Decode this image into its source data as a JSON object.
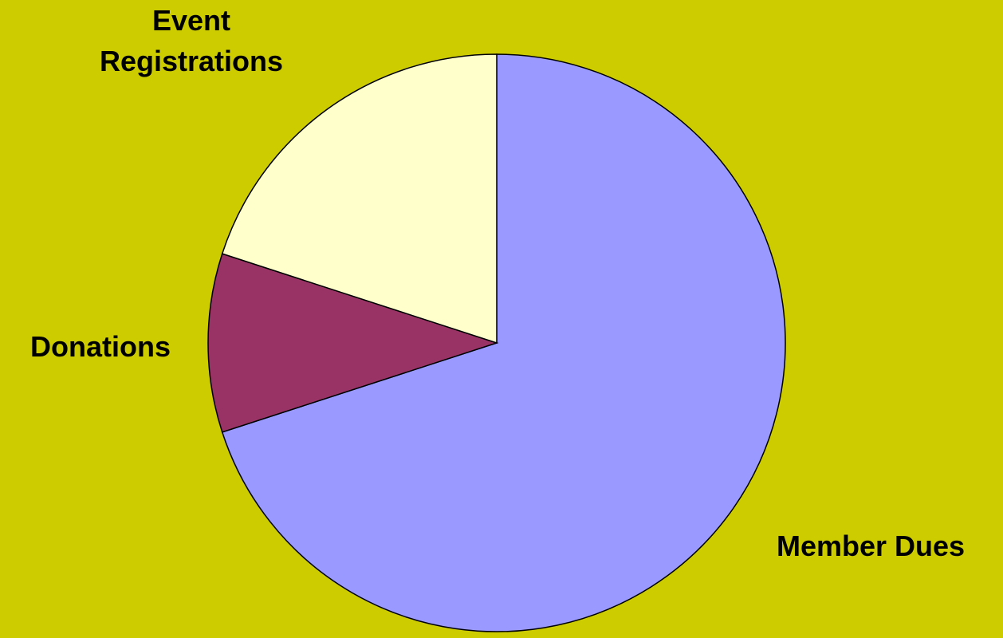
{
  "colors": {
    "background": "#CCCC00",
    "slice_outline": "#000000"
  },
  "chart_data": {
    "type": "pie",
    "title": "",
    "start_angle_deg": 0,
    "direction": "clockwise",
    "slices": [
      {
        "label": "Member Dues",
        "value": 70,
        "color": "#9999FF",
        "label_lines": [
          "Member Dues"
        ]
      },
      {
        "label": "Donations",
        "value": 10,
        "color": "#993366",
        "label_lines": [
          "Donations"
        ]
      },
      {
        "label": "Event Registrations",
        "value": 20,
        "color": "#FFFFCC",
        "label_lines": [
          "Event",
          "Registrations"
        ]
      }
    ],
    "legend": "none"
  }
}
